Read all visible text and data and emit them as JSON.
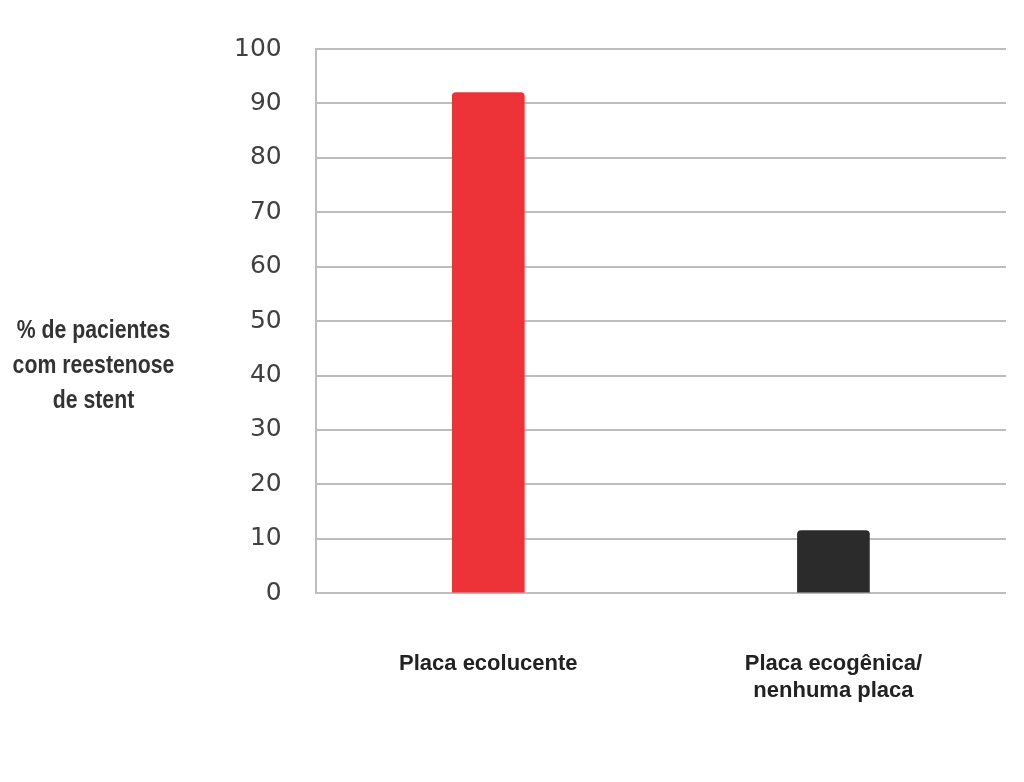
{
  "chart_data": {
    "type": "bar",
    "ylabel": "% de pacientes com reestenose de stent",
    "categories": [
      "Placa ecolucente",
      "Placa ecogênica/ nenhuma placa"
    ],
    "colors": [
      "#ee3338",
      "#2b2b2b"
    ],
    "values": [
      92,
      11.5
    ],
    "ylim": [
      0,
      100
    ],
    "yticks": [
      0,
      10,
      20,
      30,
      40,
      50,
      60,
      70,
      80,
      90,
      100
    ],
    "grid": "y",
    "legend": false
  }
}
